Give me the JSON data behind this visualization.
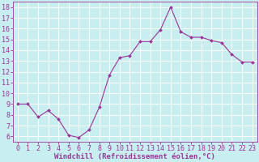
{
  "x": [
    0,
    1,
    2,
    3,
    4,
    5,
    6,
    7,
    8,
    9,
    10,
    11,
    12,
    13,
    14,
    15,
    16,
    17,
    18,
    19,
    20,
    21,
    22,
    23
  ],
  "y": [
    9.0,
    9.0,
    7.8,
    8.4,
    7.6,
    6.1,
    5.9,
    6.6,
    8.7,
    11.7,
    13.3,
    13.5,
    14.8,
    14.8,
    15.9,
    18.0,
    15.7,
    15.2,
    15.2,
    14.9,
    14.7,
    13.6,
    12.9,
    12.9
  ],
  "line_color": "#993399",
  "marker": "D",
  "marker_size": 2,
  "bg_color": "#c8eef0",
  "grid_color": "#ffffff",
  "xlabel": "Windchill (Refroidissement éolien,°C)",
  "xlabel_color": "#993399",
  "xlabel_fontsize": 6.5,
  "tick_color": "#993399",
  "tick_fontsize": 6,
  "ylim": [
    5.5,
    18.5
  ],
  "xlim": [
    -0.5,
    23.5
  ],
  "yticks": [
    6,
    7,
    8,
    9,
    10,
    11,
    12,
    13,
    14,
    15,
    16,
    17,
    18
  ],
  "xticks": [
    0,
    1,
    2,
    3,
    4,
    5,
    6,
    7,
    8,
    9,
    10,
    11,
    12,
    13,
    14,
    15,
    16,
    17,
    18,
    19,
    20,
    21,
    22,
    23
  ]
}
